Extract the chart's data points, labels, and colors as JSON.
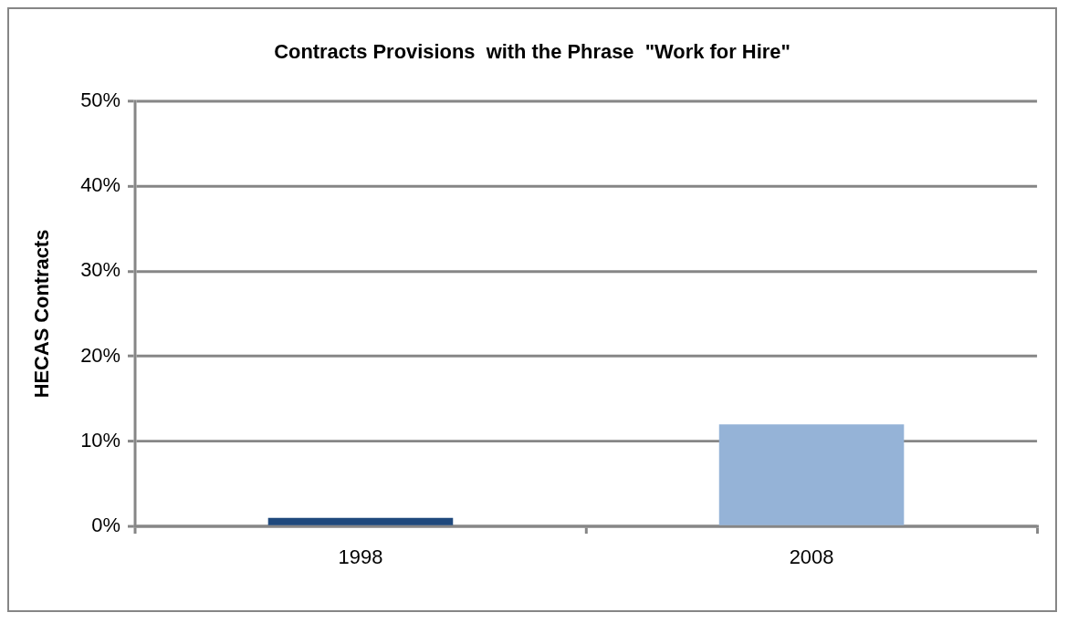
{
  "chart_data": {
    "type": "bar",
    "title": "Contracts Provisions  with the Phrase  \"Work for Hire\"",
    "ylabel": "HECAS Contracts",
    "categories": [
      "1998",
      "2008"
    ],
    "values": [
      1,
      12
    ],
    "colors": [
      "#1f497d",
      "#95b3d7"
    ],
    "ylim": [
      0,
      50
    ],
    "yticks": [
      {
        "value": 0,
        "label": "0%"
      },
      {
        "value": 10,
        "label": "10%"
      },
      {
        "value": 20,
        "label": "20%"
      },
      {
        "value": 30,
        "label": "30%"
      },
      {
        "value": 40,
        "label": "40%"
      },
      {
        "value": 50,
        "label": "50%"
      }
    ],
    "grid": "y",
    "legend": false
  }
}
